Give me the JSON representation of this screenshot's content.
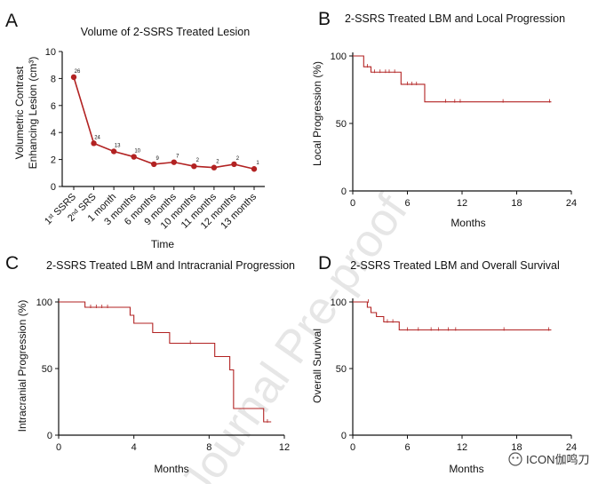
{
  "panel_letters": {
    "a": "A",
    "b": "B",
    "c": "C",
    "d": "D"
  },
  "watermark": "Journal Pre-proof",
  "credit": "ICON伽鸣刀",
  "colors": {
    "series": "#b22222",
    "axis": "#111111",
    "watermark": "#c8c8c8"
  },
  "chart_data": [
    {
      "panel": "A",
      "type": "line",
      "title": "Volume of 2-SSRS Treated Lesion",
      "xlabel": "Time",
      "ylabel_line1": "Volumetric Contrast",
      "ylabel_line2": "Enhancing Lesion (cm³)",
      "ylim": [
        0,
        10
      ],
      "yticks": [
        0,
        2,
        4,
        6,
        8,
        10
      ],
      "categories": [
        "1st SSRS",
        "2nd SRS",
        "1 month",
        "3 months",
        "6 months",
        "9 months",
        "10 months",
        "11 months",
        "12 months",
        "13 months"
      ],
      "values": [
        8.1,
        3.2,
        2.6,
        2.2,
        1.65,
        1.8,
        1.5,
        1.4,
        1.65,
        1.3
      ],
      "point_labels": [
        "26",
        "24",
        "13",
        "10",
        "9",
        "7",
        "2",
        "2",
        "2",
        "1"
      ],
      "grid": false
    },
    {
      "panel": "B",
      "type": "line",
      "title": "2-SSRS Treated LBM and Local Progression",
      "xlabel": "Months",
      "ylabel": "Local Progression (%)",
      "xlim": [
        0,
        24
      ],
      "xticks": [
        0,
        6,
        12,
        18,
        24
      ],
      "ylim": [
        0,
        100
      ],
      "yticks": [
        0,
        50,
        100
      ],
      "steps": [
        [
          0,
          100
        ],
        [
          1.2,
          92
        ],
        [
          2.0,
          88
        ],
        [
          5.3,
          79
        ],
        [
          7.9,
          66
        ],
        [
          21.8,
          66
        ]
      ],
      "censors": [
        [
          1.6,
          92
        ],
        [
          2.4,
          88
        ],
        [
          3.0,
          88
        ],
        [
          3.6,
          88
        ],
        [
          4.0,
          88
        ],
        [
          4.6,
          88
        ],
        [
          6.0,
          79
        ],
        [
          6.5,
          79
        ],
        [
          7.0,
          79
        ],
        [
          10.2,
          66
        ],
        [
          11.2,
          66
        ],
        [
          11.8,
          66
        ],
        [
          16.5,
          66
        ],
        [
          21.6,
          66
        ]
      ]
    },
    {
      "panel": "C",
      "type": "line",
      "title": "2-SSRS Treated LBM and Intracranial Progression",
      "xlabel": "Months",
      "ylabel": "Intracranial Progression (%)",
      "xlim": [
        0,
        12
      ],
      "xticks": [
        0,
        4,
        8,
        12
      ],
      "ylim": [
        0,
        100
      ],
      "yticks": [
        0,
        50,
        100
      ],
      "steps": [
        [
          0,
          100
        ],
        [
          1.4,
          96
        ],
        [
          3.8,
          90
        ],
        [
          4.0,
          84
        ],
        [
          5.0,
          77
        ],
        [
          5.9,
          69
        ],
        [
          8.3,
          59
        ],
        [
          9.1,
          49
        ],
        [
          9.3,
          20
        ],
        [
          10.9,
          10
        ],
        [
          11.3,
          10
        ]
      ],
      "censors": [
        [
          1.7,
          96
        ],
        [
          2.0,
          96
        ],
        [
          2.3,
          96
        ],
        [
          2.6,
          96
        ],
        [
          7.0,
          69
        ],
        [
          11.1,
          10
        ]
      ]
    },
    {
      "panel": "D",
      "type": "line",
      "title": "2-SSRS Treated LBM and Overall Survival",
      "xlabel": "Months",
      "ylabel": "Overall Survival",
      "xlim": [
        0,
        24
      ],
      "xticks": [
        0,
        6,
        12,
        18,
        24
      ],
      "ylim": [
        0,
        100
      ],
      "yticks": [
        0,
        50,
        100
      ],
      "steps": [
        [
          0,
          100
        ],
        [
          1.6,
          96
        ],
        [
          2.0,
          92
        ],
        [
          2.6,
          89
        ],
        [
          3.4,
          85
        ],
        [
          5.1,
          79
        ],
        [
          21.8,
          79
        ]
      ],
      "censors": [
        [
          1.7,
          100
        ],
        [
          3.8,
          85
        ],
        [
          4.4,
          85
        ],
        [
          6.0,
          79
        ],
        [
          7.2,
          79
        ],
        [
          8.6,
          79
        ],
        [
          9.4,
          79
        ],
        [
          10.5,
          79
        ],
        [
          11.3,
          79
        ],
        [
          16.6,
          79
        ],
        [
          21.5,
          79
        ]
      ]
    }
  ]
}
